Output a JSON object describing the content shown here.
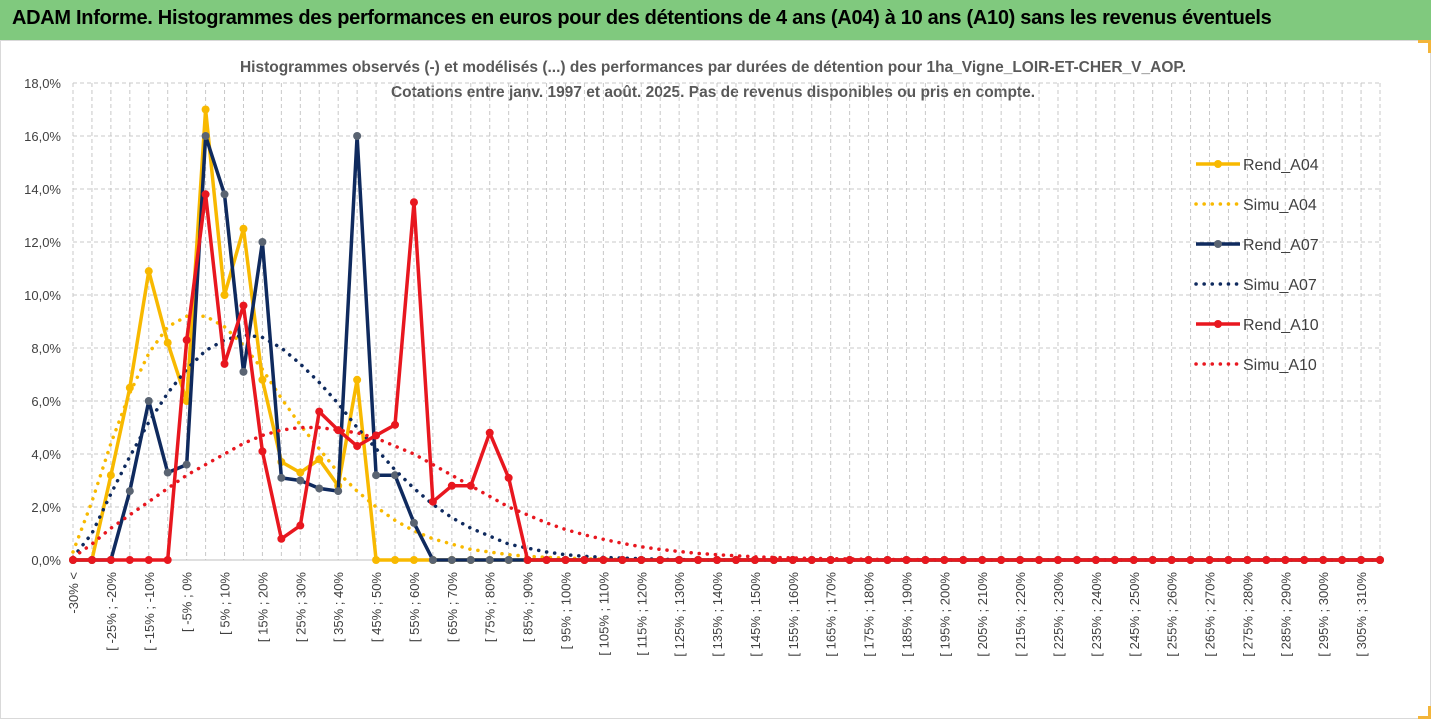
{
  "banner": {
    "title": "ADAM Informe. Histogrammes des performances en euros pour des détentions de 4 ans (A04) à 10 ans (A10) sans les revenus éventuels"
  },
  "colors": {
    "banner_bg": "#80c97e",
    "a04": "#f8b900",
    "a07": "#0f2a5e",
    "a10": "#e8171f",
    "grid": "#c8c8c8"
  },
  "chart_data": {
    "type": "line",
    "title": "Histogrammes observés (-) et modélisés (...) des performances par durées de détention pour 1ha_Vigne_LOIR-ET-CHER_V_AOP.",
    "subtitle": "Cotations entre janv. 1997 et août. 2025. Pas de revenus disponibles ou pris en compte.",
    "xlabel": "",
    "ylabel": "",
    "ylim": [
      0,
      18
    ],
    "y_ticks": [
      "0,0%",
      "2,0%",
      "4,0%",
      "6,0%",
      "8,0%",
      "10,0%",
      "12,0%",
      "14,0%",
      "16,0%",
      "18,0%"
    ],
    "x_tick_labels": [
      "-30% <",
      "[ -25% ; -20%",
      "[ -15% ; -10%",
      "[ -5% ; 0%",
      "[ 5% ; 10%",
      "[ 15% ; 20%",
      "[ 25% ; 30%",
      "[ 35% ; 40%",
      "[ 45% ; 50%",
      "[ 55% ; 60%",
      "[ 65% ; 70%",
      "[ 75% ; 80%",
      "[ 85% ; 90%",
      "[ 95% ; 100%",
      "[ 105% ; 110%",
      "[ 115% ; 120%",
      "[ 125% ; 130%",
      "[ 135% ; 140%",
      "[ 145% ; 150%",
      "[ 155% ; 160%",
      "[ 165% ; 170%",
      "[ 175% ; 180%",
      "[ 185% ; 190%",
      "[ 195% ; 200%",
      "[ 205% ; 210%",
      "[ 215% ; 220%",
      "[ 225% ; 230%",
      "[ 235% ; 240%",
      "[ 245% ; 250%",
      "[ 255% ; 260%",
      "[ 265% ; 270%",
      "[ 275% ; 280%",
      "[ 285% ; 290%",
      "[ 295% ; 300%",
      "[ 305% ; 310%"
    ],
    "num_points": 70,
    "grid": true,
    "legend_position": "right",
    "series": [
      {
        "name": "Rend_A04",
        "style": "solid",
        "color": "#f8b900",
        "values": [
          0,
          0,
          3.2,
          6.5,
          10.9,
          8.2,
          6.0,
          17.0,
          10.0,
          12.5,
          6.8,
          3.7,
          3.3,
          3.8,
          2.8,
          6.8,
          0,
          0,
          0,
          0,
          0,
          0,
          0,
          0,
          0,
          0,
          0,
          0,
          0,
          0,
          0,
          0,
          0,
          0,
          0,
          0,
          0,
          0,
          0,
          0,
          0,
          0,
          0,
          0,
          0,
          0,
          0,
          0,
          0,
          0,
          0,
          0,
          0,
          0,
          0,
          0,
          0,
          0,
          0,
          0,
          0,
          0,
          0,
          0,
          0,
          0,
          0,
          0,
          0,
          0
        ]
      },
      {
        "name": "Simu_A04",
        "style": "dotted",
        "color": "#f8b900",
        "values": [
          0.3,
          2.2,
          4.4,
          6.3,
          7.8,
          8.8,
          9.2,
          9.2,
          8.8,
          8.1,
          7.2,
          6.1,
          5.1,
          4.2,
          3.3,
          2.6,
          2.0,
          1.5,
          1.1,
          0.8,
          0.6,
          0.4,
          0.3,
          0.2,
          0.14,
          0.1,
          0.07,
          0.05,
          0.03,
          0.02,
          0,
          0,
          0,
          0,
          0,
          0,
          0,
          0,
          0,
          0,
          0,
          0,
          0,
          0,
          0,
          0,
          0,
          0,
          0,
          0,
          0,
          0,
          0,
          0,
          0,
          0,
          0,
          0,
          0,
          0,
          0,
          0,
          0,
          0,
          0,
          0,
          0,
          0,
          0,
          0
        ]
      },
      {
        "name": "Rend_A07",
        "style": "solid",
        "color": "#0f2a5e",
        "values": [
          0,
          0,
          0,
          2.6,
          6.0,
          3.3,
          3.6,
          16.0,
          13.8,
          7.1,
          12.0,
          3.1,
          3.0,
          2.7,
          2.6,
          16.0,
          3.2,
          3.2,
          1.4,
          0,
          0,
          0,
          0,
          0,
          0,
          0,
          0,
          0,
          0,
          0,
          0,
          0,
          0,
          0,
          0,
          0,
          0,
          0,
          0,
          0,
          0,
          0,
          0,
          0,
          0,
          0,
          0,
          0,
          0,
          0,
          0,
          0,
          0,
          0,
          0,
          0,
          0,
          0,
          0,
          0,
          0,
          0,
          0,
          0,
          0,
          0,
          0,
          0,
          0,
          0
        ]
      },
      {
        "name": "Simu_A07",
        "style": "dotted",
        "color": "#0f2a5e",
        "values": [
          0.1,
          1.0,
          2.5,
          3.9,
          5.2,
          6.3,
          7.2,
          7.9,
          8.3,
          8.5,
          8.4,
          8.0,
          7.4,
          6.7,
          5.9,
          5.0,
          4.2,
          3.4,
          2.7,
          2.1,
          1.6,
          1.2,
          0.9,
          0.6,
          0.45,
          0.3,
          0.2,
          0.14,
          0.1,
          0.07,
          0.05,
          0.03,
          0.02,
          0,
          0,
          0,
          0,
          0,
          0,
          0,
          0,
          0,
          0,
          0,
          0,
          0,
          0,
          0,
          0,
          0,
          0,
          0,
          0,
          0,
          0,
          0,
          0,
          0,
          0,
          0,
          0,
          0,
          0,
          0,
          0,
          0,
          0,
          0,
          0,
          0
        ]
      },
      {
        "name": "Rend_A10",
        "style": "solid",
        "color": "#e8171f",
        "values": [
          0,
          0,
          0,
          0,
          0,
          0,
          8.3,
          13.8,
          7.4,
          9.6,
          4.1,
          0.8,
          1.3,
          5.6,
          4.9,
          4.3,
          4.7,
          5.1,
          13.5,
          2.2,
          2.8,
          2.8,
          4.8,
          3.1,
          0,
          0,
          0,
          0,
          0,
          0,
          0,
          0,
          0,
          0,
          0,
          0,
          0,
          0,
          0,
          0,
          0,
          0,
          0,
          0,
          0,
          0,
          0,
          0,
          0,
          0,
          0,
          0,
          0,
          0,
          0,
          0,
          0,
          0,
          0,
          0,
          0,
          0,
          0,
          0,
          0,
          0,
          0,
          0,
          0,
          0
        ]
      },
      {
        "name": "Simu_A10",
        "style": "dotted",
        "color": "#e8171f",
        "values": [
          0.1,
          0.6,
          1.2,
          1.7,
          2.2,
          2.7,
          3.2,
          3.6,
          4.0,
          4.4,
          4.7,
          4.9,
          5.0,
          5.0,
          4.9,
          4.8,
          4.6,
          4.3,
          4.0,
          3.6,
          3.2,
          2.8,
          2.4,
          2.0,
          1.7,
          1.4,
          1.15,
          0.95,
          0.78,
          0.63,
          0.5,
          0.4,
          0.32,
          0.25,
          0.2,
          0.16,
          0.12,
          0.1,
          0.08,
          0.06,
          0.05,
          0.04,
          0.03,
          0.02,
          0.02,
          0.01,
          0.01,
          0,
          0,
          0,
          0,
          0,
          0,
          0,
          0,
          0,
          0,
          0,
          0,
          0,
          0,
          0,
          0,
          0,
          0,
          0,
          0,
          0,
          0,
          0
        ]
      }
    ]
  }
}
